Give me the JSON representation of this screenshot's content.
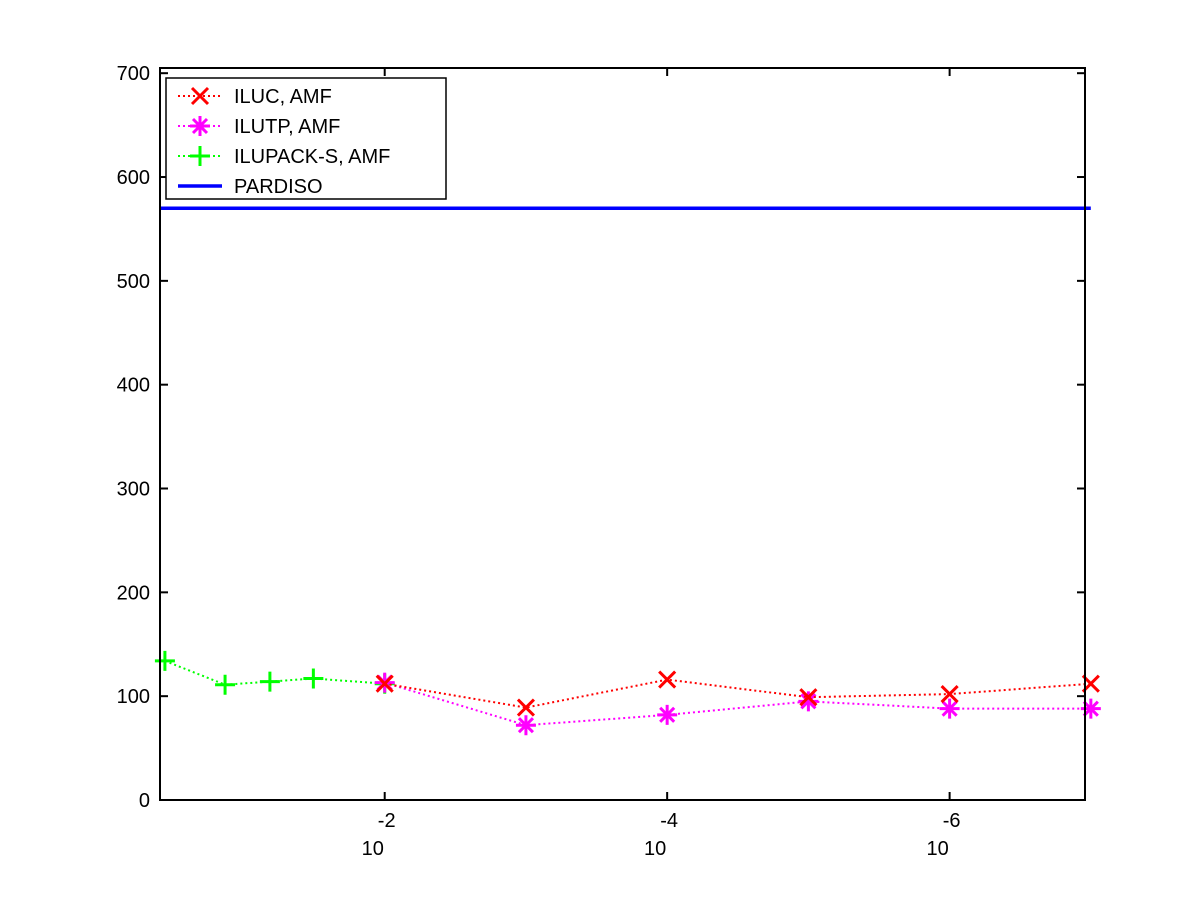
{
  "chart_data": {
    "type": "line",
    "x_scale": "log",
    "x_reversed": true,
    "xlim": [
      0.39,
      1.1e-07
    ],
    "ylim": [
      0,
      705
    ],
    "y_ticks": [
      0,
      100,
      200,
      300,
      400,
      500,
      600,
      700
    ],
    "x_ticks": [
      {
        "value": 0.01,
        "base": "10",
        "exponent": "-2"
      },
      {
        "value": 0.0001,
        "base": "10",
        "exponent": "-4"
      },
      {
        "value": 1e-06,
        "base": "10",
        "exponent": "-6"
      }
    ],
    "legend_position": "top-left",
    "series": [
      {
        "name": "ILUC, AMF",
        "color": "#ff0000",
        "line_style": "dotted",
        "marker": "x",
        "x": [
          0.01,
          0.001,
          0.0001,
          1e-05,
          1e-06,
          1e-07
        ],
        "y": [
          112,
          89,
          116,
          99,
          102,
          112
        ]
      },
      {
        "name": "ILUTP, AMF",
        "color": "#ff00ff",
        "line_style": "dotted",
        "marker": "asterisk",
        "x": [
          0.01,
          0.001,
          0.0001,
          1e-05,
          1e-06,
          1e-07
        ],
        "y": [
          113,
          72,
          82,
          95,
          88,
          88
        ]
      },
      {
        "name": "ILUPACK-S, AMF",
        "color": "#00ff00",
        "line_style": "dotted",
        "marker": "plus",
        "x": [
          0.36,
          0.135,
          0.065,
          0.032,
          0.01
        ],
        "y": [
          134,
          111,
          114,
          117,
          112
        ]
      },
      {
        "name": "PARDISO",
        "color": "#0000ff",
        "line_style": "solid",
        "marker": "none",
        "x": [
          0.39,
          1e-07
        ],
        "y": [
          570,
          570
        ]
      }
    ]
  }
}
